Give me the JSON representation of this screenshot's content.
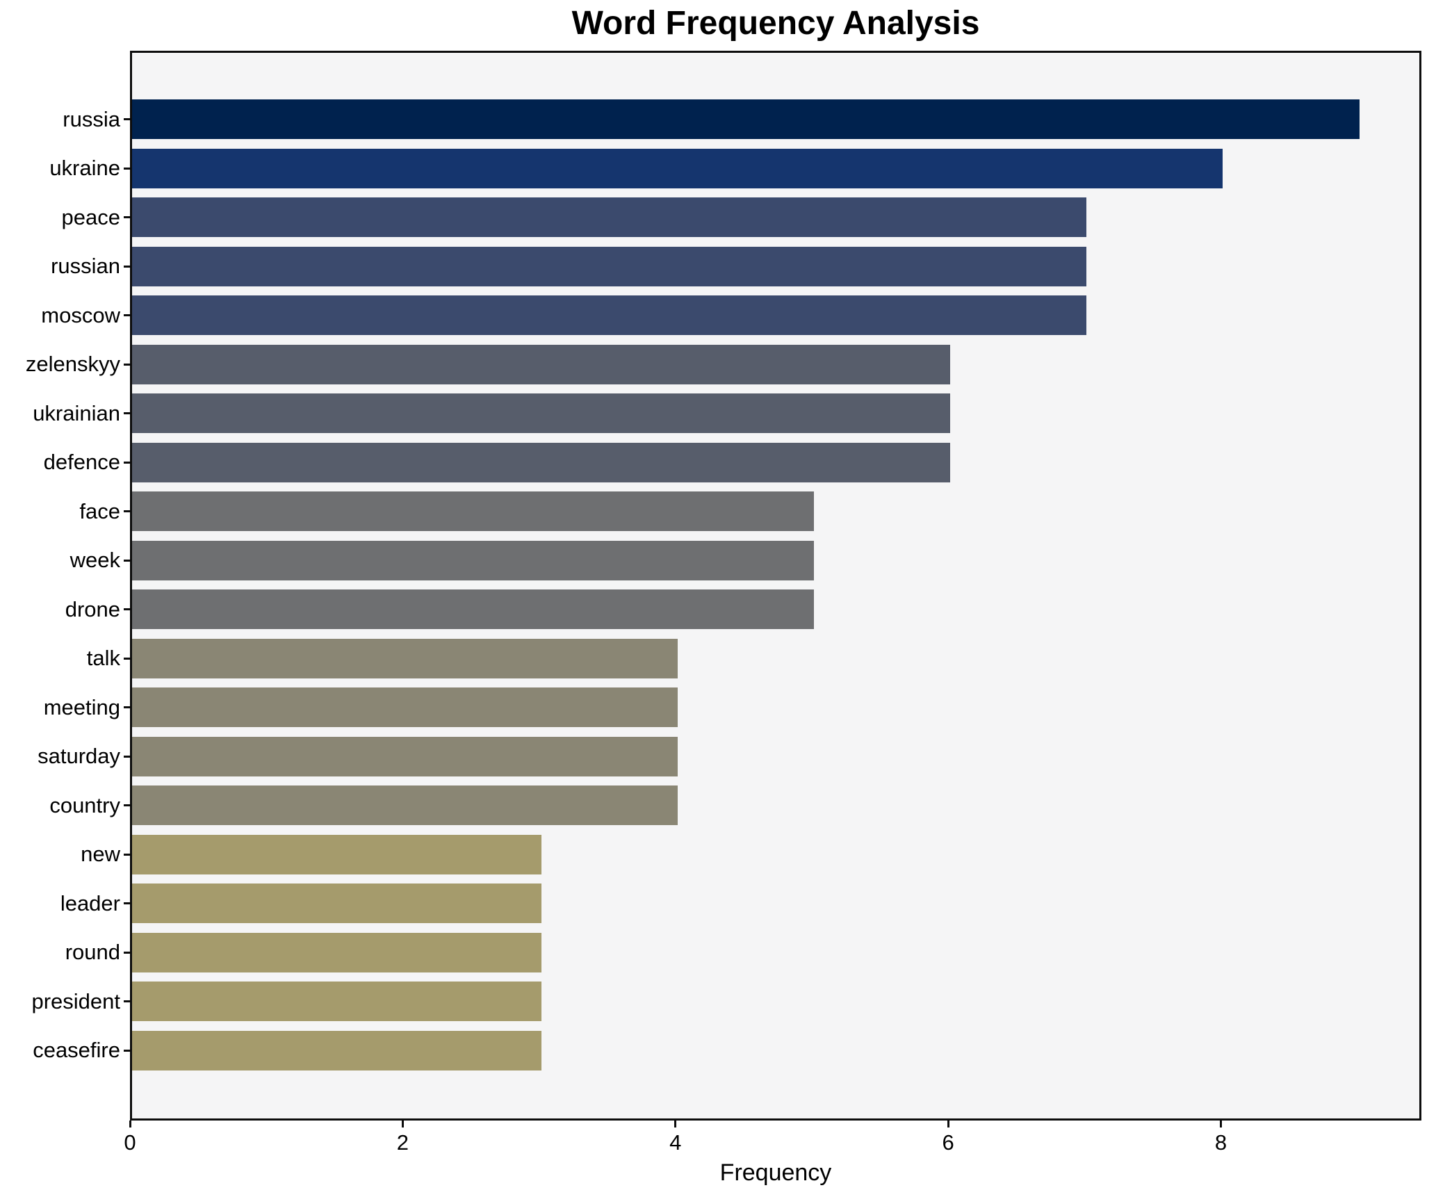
{
  "chart_data": {
    "type": "bar",
    "orientation": "horizontal",
    "title": "Word Frequency Analysis",
    "xlabel": "Frequency",
    "ylabel": "",
    "categories": [
      "russia",
      "ukraine",
      "peace",
      "russian",
      "moscow",
      "zelenskyy",
      "ukrainian",
      "defence",
      "face",
      "week",
      "drone",
      "talk",
      "meeting",
      "saturday",
      "country",
      "new",
      "leader",
      "round",
      "president",
      "ceasefire"
    ],
    "values": [
      9,
      8,
      7,
      7,
      7,
      6,
      6,
      6,
      5,
      5,
      5,
      4,
      4,
      4,
      4,
      3,
      3,
      3,
      3,
      3
    ],
    "bar_colors": [
      "#00224e",
      "#15356e",
      "#3b4a6d",
      "#3b4a6d",
      "#3b4a6d",
      "#575d6b",
      "#575d6b",
      "#575d6b",
      "#6e6f71",
      "#6e6f71",
      "#6e6f71",
      "#8a8674",
      "#8a8674",
      "#8a8674",
      "#8a8674",
      "#a59b6c",
      "#a59b6c",
      "#a59b6c",
      "#a59b6c",
      "#a59b6c"
    ],
    "x_ticks": [
      0,
      2,
      4,
      6,
      8
    ],
    "xlim": [
      0,
      9.44
    ],
    "grid": false,
    "legend": null,
    "plot_background": "#f5f5f6",
    "figure_background": "#ffffff",
    "spine_color": "#0d0d0d",
    "colormap": "cividis"
  }
}
